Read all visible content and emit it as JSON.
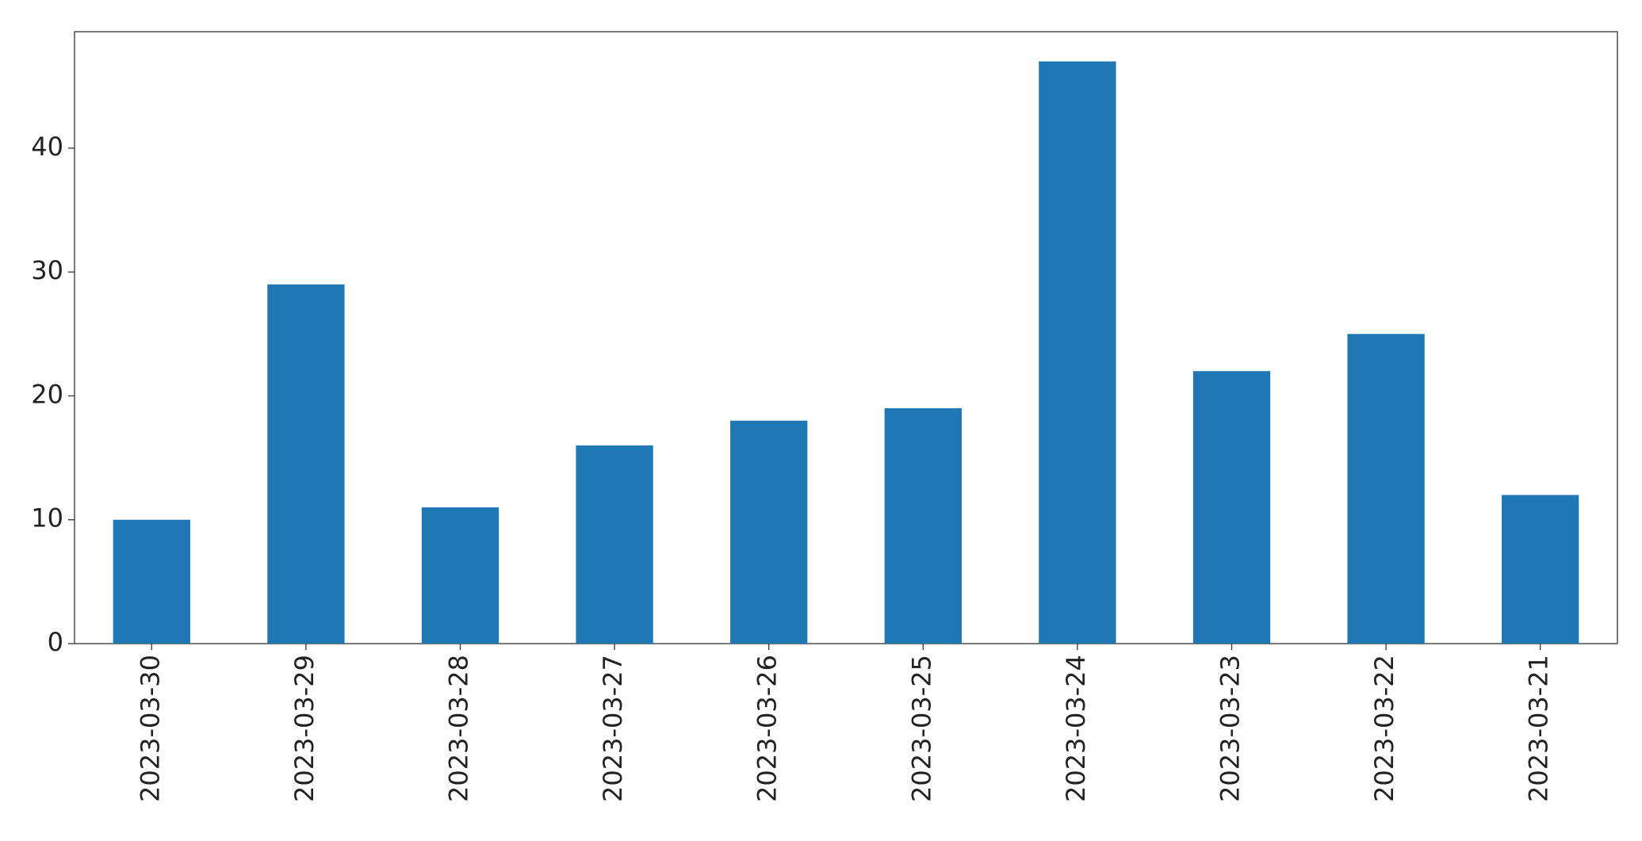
{
  "chart_data": {
    "type": "bar",
    "categories": [
      "2023-03-30",
      "2023-03-29",
      "2023-03-28",
      "2023-03-27",
      "2023-03-26",
      "2023-03-25",
      "2023-03-24",
      "2023-03-23",
      "2023-03-22",
      "2023-03-21"
    ],
    "values": [
      10,
      29,
      11,
      16,
      18,
      19,
      47,
      22,
      25,
      12
    ],
    "color": "#1f77b4",
    "ylim": [
      0,
      49.4
    ],
    "yticks": [
      0,
      10,
      20,
      30,
      40
    ],
    "grid": false
  }
}
